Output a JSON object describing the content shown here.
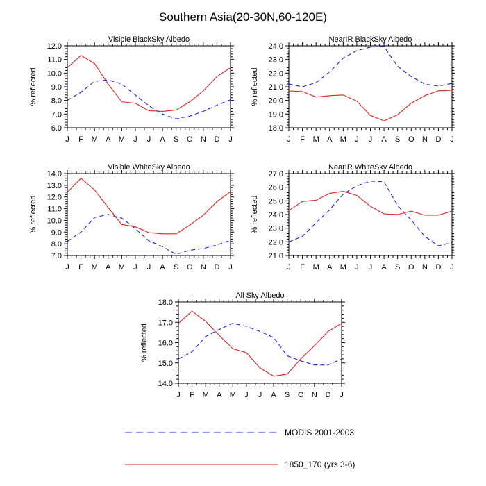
{
  "figure": {
    "title": "Southern Asia(20-30N,60-120E)",
    "legend": [
      {
        "label": "MODIS 2001-2003",
        "color": "#1a1aff",
        "dash": true
      },
      {
        "label": "1850_170 (yrs 3-6)",
        "color": "#e02020",
        "dash": false
      }
    ]
  },
  "chart_data": [
    {
      "type": "line",
      "title": "Visible BlackSky Albedo",
      "ylabel": "% reflected",
      "xlabel": "",
      "categories": [
        "J",
        "F",
        "M",
        "A",
        "M",
        "J",
        "J",
        "A",
        "S",
        "O",
        "N",
        "D",
        "J"
      ],
      "ylim": [
        6.0,
        12.0
      ],
      "yticks": [
        "6.0",
        "7.0",
        "8.0",
        "9.0",
        "10.0",
        "11.0",
        "12.0"
      ],
      "series": [
        {
          "name": "MODIS 2001-2003",
          "color": "#1a1aff",
          "dash": true,
          "values": [
            8.0,
            8.6,
            9.4,
            9.5,
            9.2,
            8.4,
            7.6,
            7.0,
            6.65,
            6.85,
            7.2,
            7.65,
            8.05
          ]
        },
        {
          "name": "1850_170 (yrs 3-6)",
          "color": "#e02020",
          "dash": false,
          "values": [
            10.4,
            11.3,
            10.7,
            9.2,
            7.9,
            7.8,
            7.25,
            7.2,
            7.3,
            7.9,
            8.7,
            9.75,
            10.4
          ]
        }
      ]
    },
    {
      "type": "line",
      "title": "NearIR BlackSky Albedo",
      "ylabel": "% reflected",
      "xlabel": "",
      "categories": [
        "J",
        "F",
        "M",
        "A",
        "M",
        "J",
        "J",
        "A",
        "S",
        "O",
        "N",
        "D",
        "J"
      ],
      "ylim": [
        18.0,
        24.0
      ],
      "yticks": [
        "18.0",
        "19.0",
        "20.0",
        "21.0",
        "22.0",
        "23.0",
        "24.0"
      ],
      "series": [
        {
          "name": "MODIS 2001-2003",
          "color": "#1a1aff",
          "dash": true,
          "values": [
            21.2,
            21.0,
            21.3,
            22.1,
            23.1,
            23.65,
            23.9,
            23.95,
            22.5,
            21.75,
            21.2,
            21.05,
            21.25
          ]
        },
        {
          "name": "1850_170 (yrs 3-6)",
          "color": "#e02020",
          "dash": false,
          "values": [
            20.7,
            20.65,
            20.25,
            20.35,
            20.4,
            19.95,
            18.9,
            18.5,
            18.95,
            19.8,
            20.35,
            20.7,
            20.75
          ]
        }
      ]
    },
    {
      "type": "line",
      "title": "Visible WhiteSky Albedo",
      "ylabel": "% reflected",
      "xlabel": "",
      "categories": [
        "J",
        "F",
        "M",
        "A",
        "M",
        "J",
        "J",
        "A",
        "S",
        "O",
        "N",
        "D",
        "J"
      ],
      "ylim": [
        7.0,
        14.0
      ],
      "yticks": [
        "7.0",
        "8.0",
        "9.0",
        "10.0",
        "11.0",
        "12.0",
        "13.0",
        "14.0"
      ],
      "series": [
        {
          "name": "MODIS 2001-2003",
          "color": "#1a1aff",
          "dash": true,
          "values": [
            8.2,
            9.0,
            10.25,
            10.5,
            10.2,
            9.3,
            8.25,
            7.75,
            7.1,
            7.45,
            7.6,
            7.9,
            8.3
          ]
        },
        {
          "name": "1850_170 (yrs 3-6)",
          "color": "#e02020",
          "dash": false,
          "values": [
            12.4,
            13.6,
            12.6,
            11.1,
            9.65,
            9.45,
            8.95,
            8.85,
            8.85,
            9.6,
            10.45,
            11.6,
            12.45
          ]
        }
      ]
    },
    {
      "type": "line",
      "title": "NearIR WhiteSky Albedo",
      "ylabel": "% reflected",
      "xlabel": "",
      "categories": [
        "J",
        "F",
        "M",
        "A",
        "M",
        "J",
        "J",
        "A",
        "S",
        "O",
        "N",
        "D",
        "J"
      ],
      "ylim": [
        21.0,
        27.0
      ],
      "yticks": [
        "21.0",
        "22.0",
        "23.0",
        "24.0",
        "25.0",
        "26.0",
        "27.0"
      ],
      "series": [
        {
          "name": "MODIS 2001-2003",
          "color": "#1a1aff",
          "dash": true,
          "values": [
            22.0,
            22.4,
            23.4,
            24.35,
            25.5,
            26.1,
            26.45,
            26.4,
            24.65,
            23.6,
            22.4,
            21.7,
            21.95
          ]
        },
        {
          "name": "1850_170 (yrs 3-6)",
          "color": "#e02020",
          "dash": false,
          "values": [
            24.3,
            24.95,
            25.05,
            25.55,
            25.7,
            25.4,
            24.6,
            24.05,
            24.0,
            24.25,
            23.95,
            23.95,
            24.25
          ]
        }
      ]
    },
    {
      "type": "line",
      "title": "All Sky Albedo",
      "ylabel": "% reflected",
      "xlabel": "",
      "categories": [
        "J",
        "F",
        "M",
        "A",
        "M",
        "J",
        "J",
        "A",
        "S",
        "O",
        "N",
        "D",
        "J"
      ],
      "ylim": [
        14.0,
        18.0
      ],
      "yticks": [
        "14.0",
        "15.0",
        "16.0",
        "17.0",
        "18.0"
      ],
      "series": [
        {
          "name": "MODIS 2001-2003",
          "color": "#1a1aff",
          "dash": true,
          "values": [
            15.2,
            15.55,
            16.3,
            16.65,
            16.95,
            16.8,
            16.55,
            16.25,
            15.35,
            15.1,
            14.9,
            14.9,
            15.2
          ]
        },
        {
          "name": "1850_170 (yrs 3-6)",
          "color": "#e02020",
          "dash": false,
          "values": [
            16.95,
            17.55,
            17.05,
            16.35,
            15.7,
            15.5,
            14.75,
            14.35,
            14.45,
            15.2,
            15.85,
            16.55,
            16.95
          ]
        }
      ]
    }
  ]
}
